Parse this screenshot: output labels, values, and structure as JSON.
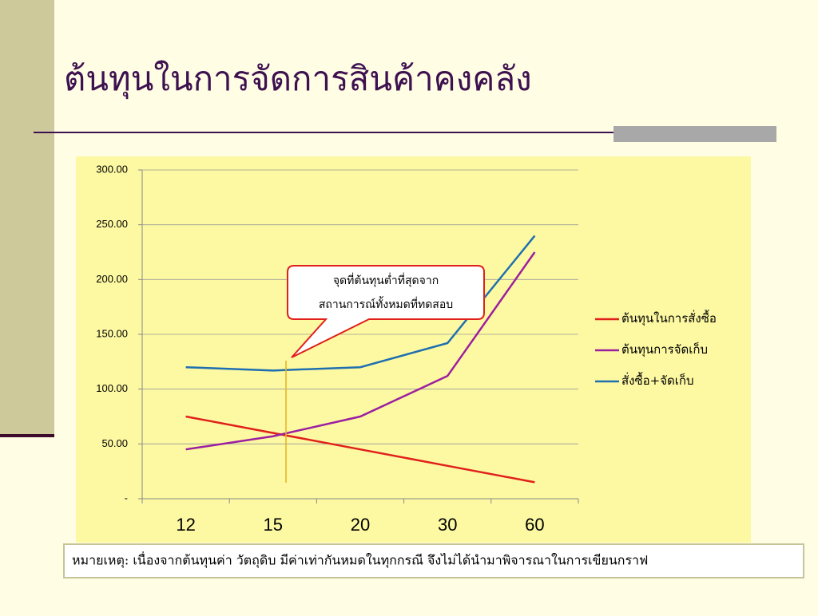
{
  "chart_data": {
    "type": "line",
    "title": "ต้นทุนในการจัดการสินค้าคงคลัง",
    "categories": [
      "12",
      "15",
      "20",
      "30",
      "60"
    ],
    "series": [
      {
        "name": "ต้นทุนในการสั่งซื้อ",
        "color": "#e0201b",
        "values": [
          75,
          60,
          45,
          30,
          15
        ]
      },
      {
        "name": "ต้นทุนการจัดเก็บ",
        "color": "#9b1fa0",
        "values": [
          45,
          57,
          75,
          112,
          225
        ]
      },
      {
        "name": "สั่งซื้อ+จัดเก็บ",
        "color": "#1f6fb0",
        "values": [
          120,
          117,
          120,
          142,
          240
        ]
      }
    ],
    "ylim": [
      0,
      300
    ],
    "yticks": [
      {
        "value": 0,
        "label": "-"
      },
      {
        "value": 50,
        "label": "50.00"
      },
      {
        "value": 100,
        "label": "100.00"
      },
      {
        "value": 150,
        "label": "150.00"
      },
      {
        "value": 200,
        "label": "200.00"
      },
      {
        "value": 250,
        "label": "250.00"
      },
      {
        "value": 300,
        "label": "300.00"
      }
    ],
    "grid": true,
    "legend": "right",
    "annotation": [
      "จุดที่ต้นทุนต่ำที่สุดจาก",
      "สถานการณ์ทั้งหมดที่ทดสอบ"
    ]
  },
  "note": "หมายเหตุ: เนื่องจากต้นทุนค่า วัตถุดิบ มีค่าเท่ากันหมดในทุกกรณี จึงไม่ได้นำมาพิจารณาในการเขียนกราฟ"
}
